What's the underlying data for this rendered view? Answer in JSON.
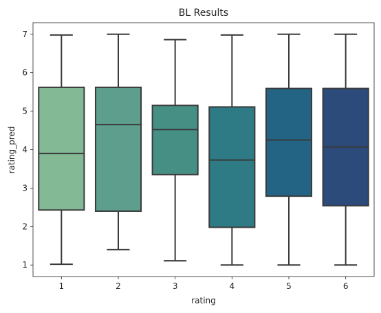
{
  "chart_data": {
    "type": "box",
    "title": "BL Results",
    "xlabel": "rating",
    "ylabel": "rating_pred",
    "ylim": [
      0.7,
      7.3
    ],
    "yticks": [
      1,
      2,
      3,
      4,
      5,
      6,
      7
    ],
    "categories": [
      "1",
      "2",
      "3",
      "4",
      "5",
      "6"
    ],
    "colors": [
      "#84b995",
      "#5e9e8c",
      "#468f85",
      "#2f7b85",
      "#236485",
      "#2c4b7b"
    ],
    "edge_color": "#3a3a3a",
    "grid": false,
    "boxes": [
      {
        "category": "1",
        "whisker_low": 1.02,
        "q1": 2.43,
        "median": 3.9,
        "q3": 5.62,
        "whisker_high": 6.98
      },
      {
        "category": "2",
        "whisker_low": 1.4,
        "q1": 2.4,
        "median": 4.65,
        "q3": 5.62,
        "whisker_high": 7.0
      },
      {
        "category": "3",
        "whisker_low": 1.11,
        "q1": 3.35,
        "median": 4.52,
        "q3": 5.15,
        "whisker_high": 6.86
      },
      {
        "category": "4",
        "whisker_low": 1.0,
        "q1": 1.98,
        "median": 3.73,
        "q3": 5.11,
        "whisker_high": 6.98
      },
      {
        "category": "5",
        "whisker_low": 1.0,
        "q1": 2.79,
        "median": 4.25,
        "q3": 5.59,
        "whisker_high": 7.0
      },
      {
        "category": "6",
        "whisker_low": 1.0,
        "q1": 2.54,
        "median": 4.07,
        "q3": 5.59,
        "whisker_high": 7.0
      }
    ]
  }
}
